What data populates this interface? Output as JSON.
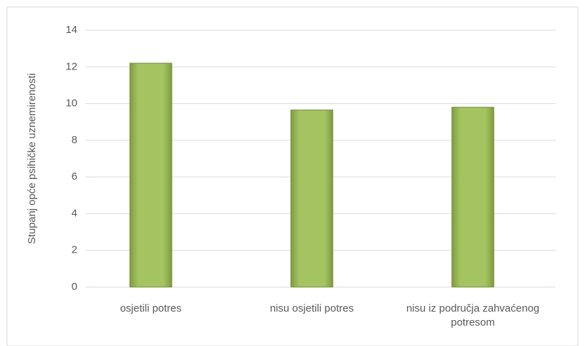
{
  "chart_data": {
    "type": "bar",
    "y_label": "Stupanj opće psihičke uznemirenosti",
    "categories": [
      "osjetili potres",
      "nisu osjetili potres",
      "nisu iz područja zahvaćenog potresom"
    ],
    "values": [
      12.2,
      9.65,
      9.8
    ],
    "color": "#9bbb59",
    "ylim": [
      0,
      14
    ],
    "yticks": [
      0,
      2,
      4,
      6,
      8,
      10,
      12,
      14
    ],
    "grid": true
  }
}
